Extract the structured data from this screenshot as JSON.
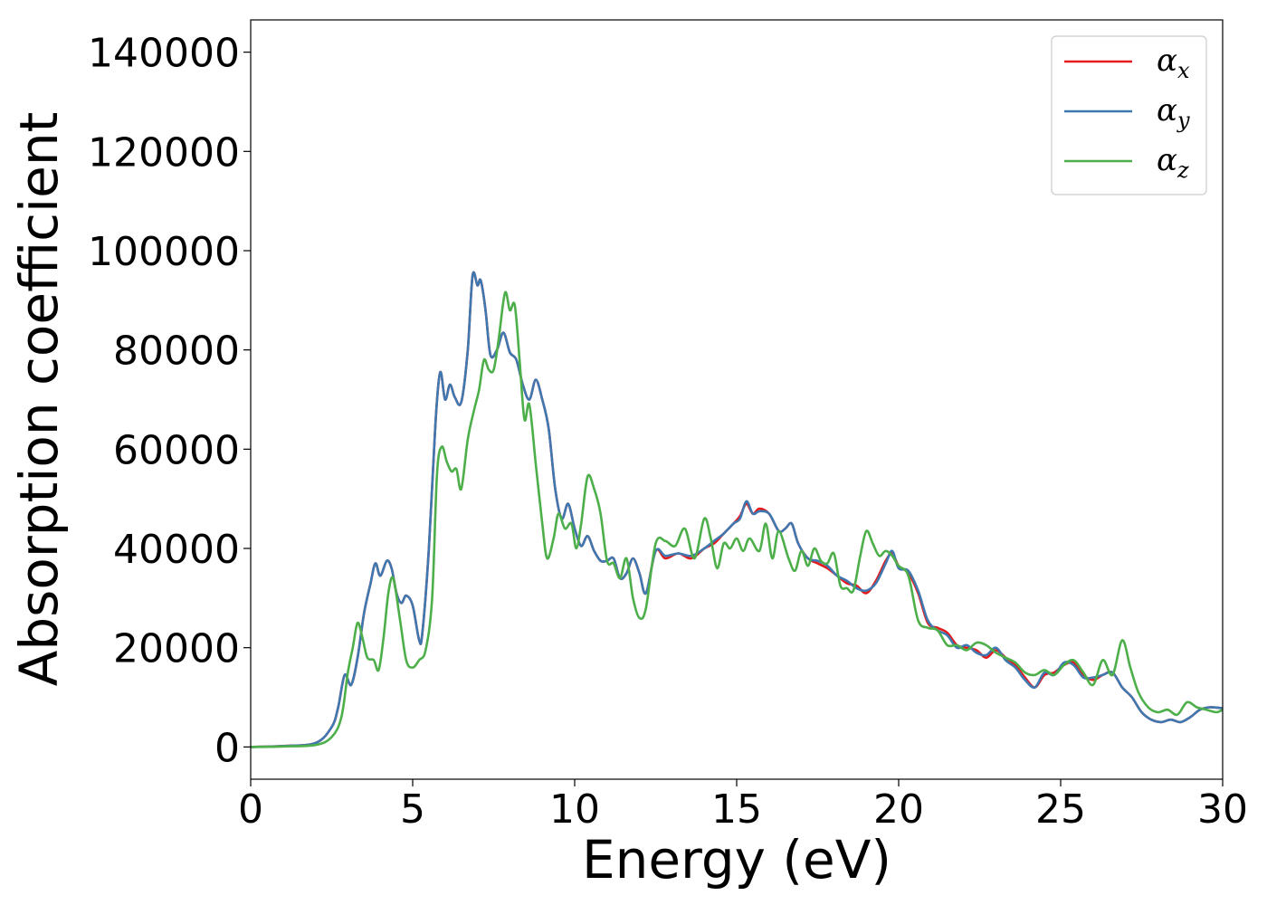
{
  "chart_data": {
    "type": "line",
    "title": "",
    "xlabel": "Energy (eV)",
    "ylabel": "Absorption coefficient",
    "xlim": [
      0,
      30
    ],
    "ylim": [
      -6500,
      146500
    ],
    "xticks": [
      0,
      5,
      10,
      15,
      20,
      25,
      30
    ],
    "yticks": [
      0,
      20000,
      40000,
      60000,
      80000,
      100000,
      120000,
      140000
    ],
    "grid": false,
    "legend_position": "top-right",
    "series": [
      {
        "name": "αx",
        "legend_base": "α",
        "legend_sub": "x",
        "color": "#e41a1c",
        "x": [
          0,
          1,
          2,
          2.5,
          2.7,
          2.9,
          3.1,
          3.3,
          3.5,
          3.7,
          3.85,
          4.0,
          4.2,
          4.35,
          4.5,
          4.65,
          4.8,
          5.0,
          5.2,
          5.3,
          5.5,
          5.7,
          5.85,
          6.0,
          6.15,
          6.3,
          6.5,
          6.7,
          6.85,
          7.0,
          7.1,
          7.25,
          7.4,
          7.6,
          7.8,
          8.0,
          8.2,
          8.4,
          8.6,
          8.8,
          9.0,
          9.2,
          9.4,
          9.6,
          9.8,
          10.0,
          10.2,
          10.4,
          10.6,
          10.8,
          11.0,
          11.2,
          11.4,
          11.6,
          11.8,
          12.0,
          12.2,
          12.5,
          12.8,
          13.2,
          13.6,
          14.0,
          14.3,
          14.6,
          14.9,
          15.1,
          15.3,
          15.5,
          15.7,
          16.0,
          16.3,
          16.5,
          16.7,
          16.9,
          17.2,
          17.5,
          17.8,
          18.1,
          18.4,
          18.7,
          19.0,
          19.3,
          19.6,
          19.8,
          20.0,
          20.3,
          20.6,
          20.9,
          21.2,
          21.5,
          21.8,
          22.1,
          22.4,
          22.7,
          23.0,
          23.3,
          23.6,
          23.9,
          24.2,
          24.5,
          24.8,
          25.1,
          25.4,
          25.7,
          26.0,
          26.3,
          26.6,
          26.9,
          27.2,
          27.5,
          27.8,
          28.1,
          28.4,
          28.7,
          29.0,
          29.3,
          29.6,
          30.0
        ],
        "y": [
          0,
          200,
          800,
          4000,
          8000,
          14500,
          12500,
          18000,
          27000,
          33000,
          37000,
          34500,
          37500,
          36000,
          31000,
          29000,
          30500,
          28500,
          21500,
          23000,
          40000,
          65000,
          75500,
          70000,
          73000,
          70500,
          69500,
          80000,
          95000,
          93000,
          94000,
          88000,
          79000,
          80000,
          83500,
          79500,
          78000,
          73000,
          70000,
          74000,
          70000,
          64000,
          52000,
          46000,
          49000,
          44000,
          40500,
          42500,
          39500,
          37500,
          37500,
          38000,
          34000,
          35000,
          38000,
          35000,
          31000,
          39500,
          38000,
          39000,
          38000,
          40000,
          41000,
          43000,
          45000,
          46500,
          49000,
          47000,
          48000,
          47000,
          43500,
          44000,
          45000,
          41000,
          38000,
          37000,
          36000,
          34500,
          33000,
          32500,
          31000,
          33500,
          37500,
          39000,
          36500,
          35000,
          31000,
          25000,
          24000,
          23000,
          20500,
          20000,
          19500,
          18000,
          19500,
          18000,
          16500,
          14000,
          12000,
          14500,
          15000,
          16500,
          17000,
          14500,
          13500,
          14500,
          15000,
          12000,
          10000,
          7000,
          5500,
          5000,
          5500,
          5000,
          6000,
          7500,
          8000,
          7800
        ]
      },
      {
        "name": "αy",
        "legend_base": "α",
        "legend_sub": "y",
        "color": "#3f78b0",
        "x": [
          0,
          1,
          2,
          2.5,
          2.7,
          2.9,
          3.1,
          3.3,
          3.5,
          3.7,
          3.85,
          4.0,
          4.2,
          4.35,
          4.5,
          4.65,
          4.8,
          5.0,
          5.2,
          5.3,
          5.5,
          5.7,
          5.85,
          6.0,
          6.15,
          6.3,
          6.5,
          6.7,
          6.85,
          7.0,
          7.1,
          7.25,
          7.4,
          7.6,
          7.8,
          8.0,
          8.2,
          8.4,
          8.6,
          8.8,
          9.0,
          9.2,
          9.4,
          9.6,
          9.8,
          10.0,
          10.2,
          10.4,
          10.6,
          10.8,
          11.0,
          11.2,
          11.4,
          11.6,
          11.8,
          12.0,
          12.2,
          12.5,
          12.8,
          13.2,
          13.6,
          14.0,
          14.3,
          14.6,
          14.9,
          15.1,
          15.3,
          15.5,
          15.7,
          16.0,
          16.3,
          16.5,
          16.7,
          16.9,
          17.2,
          17.5,
          17.8,
          18.1,
          18.4,
          18.7,
          19.0,
          19.3,
          19.6,
          19.8,
          20.0,
          20.3,
          20.6,
          20.9,
          21.2,
          21.5,
          21.8,
          22.1,
          22.4,
          22.7,
          23.0,
          23.3,
          23.6,
          23.9,
          24.2,
          24.5,
          24.8,
          25.1,
          25.4,
          25.7,
          26.0,
          26.3,
          26.6,
          26.9,
          27.2,
          27.5,
          27.8,
          28.1,
          28.4,
          28.7,
          29.0,
          29.3,
          29.6,
          30.0
        ],
        "y": [
          0,
          200,
          800,
          4000,
          8000,
          14500,
          12500,
          18000,
          27000,
          33000,
          37000,
          34500,
          37500,
          36000,
          31000,
          29000,
          30500,
          28500,
          21500,
          23000,
          40000,
          65000,
          75500,
          70000,
          73000,
          70500,
          69500,
          80000,
          95000,
          93000,
          94000,
          88000,
          79000,
          80000,
          83500,
          79500,
          78000,
          73000,
          70000,
          74000,
          70000,
          64000,
          52000,
          46000,
          49000,
          44000,
          40500,
          42500,
          39500,
          37500,
          37500,
          38000,
          34000,
          35000,
          38000,
          35000,
          31000,
          39500,
          38500,
          39000,
          38500,
          40000,
          41500,
          43000,
          45000,
          46000,
          49500,
          47000,
          47500,
          47000,
          43500,
          44000,
          45000,
          41000,
          38000,
          37500,
          36500,
          34500,
          33500,
          32000,
          31500,
          33000,
          37000,
          39500,
          36000,
          35500,
          31500,
          25500,
          23500,
          22500,
          20000,
          20500,
          19000,
          18500,
          20000,
          17500,
          16000,
          13500,
          12000,
          15000,
          14500,
          17000,
          16500,
          14000,
          14000,
          14500,
          15000,
          12000,
          10000,
          7000,
          5500,
          5000,
          5500,
          5000,
          6000,
          7500,
          8000,
          7800
        ]
      },
      {
        "name": "αz",
        "legend_base": "α",
        "legend_sub": "z",
        "color": "#4daf4a",
        "x": [
          0,
          1,
          2,
          2.5,
          2.8,
          3.0,
          3.15,
          3.3,
          3.45,
          3.6,
          3.8,
          3.95,
          4.1,
          4.25,
          4.4,
          4.6,
          4.8,
          5.0,
          5.2,
          5.4,
          5.6,
          5.75,
          5.9,
          6.05,
          6.2,
          6.35,
          6.5,
          6.7,
          6.9,
          7.05,
          7.2,
          7.35,
          7.5,
          7.65,
          7.85,
          8.0,
          8.15,
          8.3,
          8.45,
          8.6,
          8.8,
          9.0,
          9.15,
          9.35,
          9.5,
          9.7,
          9.9,
          10.05,
          10.2,
          10.4,
          10.6,
          10.8,
          11.0,
          11.2,
          11.4,
          11.6,
          11.8,
          12.0,
          12.2,
          12.5,
          12.8,
          13.1,
          13.4,
          13.7,
          14.0,
          14.2,
          14.4,
          14.6,
          14.8,
          15.0,
          15.2,
          15.4,
          15.7,
          15.9,
          16.1,
          16.3,
          16.6,
          16.8,
          17.0,
          17.2,
          17.4,
          17.6,
          17.8,
          18.0,
          18.2,
          18.4,
          18.6,
          18.8,
          19.0,
          19.2,
          19.4,
          19.6,
          19.8,
          20.0,
          20.3,
          20.6,
          20.9,
          21.2,
          21.5,
          21.8,
          22.1,
          22.4,
          22.7,
          23.0,
          23.3,
          23.6,
          23.9,
          24.2,
          24.5,
          24.8,
          25.1,
          25.4,
          25.7,
          26.0,
          26.3,
          26.6,
          26.9,
          27.15,
          27.4,
          27.7,
          28.0,
          28.3,
          28.6,
          28.9,
          29.2,
          29.5,
          29.8,
          30.0
        ],
        "y": [
          0,
          100,
          400,
          2000,
          6000,
          15000,
          20000,
          25000,
          22000,
          18000,
          17500,
          15500,
          22000,
          31000,
          34000,
          26000,
          17500,
          16000,
          17500,
          19500,
          30000,
          55000,
          60500,
          57500,
          55500,
          56000,
          52000,
          62000,
          68000,
          72000,
          78000,
          76000,
          76000,
          82000,
          91500,
          88000,
          89000,
          78000,
          66000,
          69000,
          57000,
          45000,
          38000,
          42000,
          47000,
          44000,
          45000,
          40000,
          45000,
          54500,
          52000,
          47000,
          37500,
          37000,
          34000,
          38000,
          30000,
          26000,
          28000,
          41000,
          41500,
          40500,
          44000,
          38000,
          46000,
          42000,
          36000,
          41000,
          40000,
          42000,
          39500,
          42000,
          39500,
          45000,
          38000,
          43500,
          38000,
          35500,
          39500,
          36500,
          40000,
          37500,
          37000,
          39000,
          32500,
          32000,
          31500,
          38000,
          43500,
          41000,
          38500,
          39500,
          38500,
          36500,
          34500,
          25500,
          24000,
          23500,
          20500,
          20500,
          19500,
          21000,
          20500,
          19000,
          18000,
          17000,
          15000,
          14500,
          15500,
          14500,
          16500,
          17500,
          15000,
          12500,
          17500,
          14500,
          21500,
          16000,
          11000,
          8000,
          7000,
          7500,
          6500,
          9000,
          8000,
          7500,
          7000,
          7500
        ]
      }
    ]
  }
}
